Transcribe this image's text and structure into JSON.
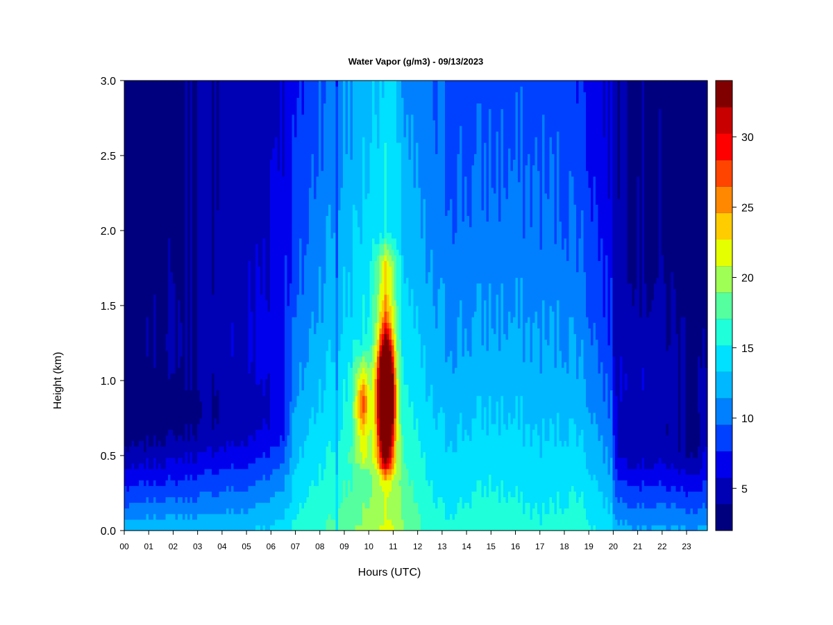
{
  "chart_data": {
    "type": "heatmap",
    "title": "Water Vapor (g/m3) - 09/13/2023",
    "xlabel": "Hours (UTC)",
    "ylabel": "Height (km)",
    "xlim": [
      0,
      23.85
    ],
    "ylim": [
      0,
      3.0
    ],
    "x_ticks": [
      "00",
      "01",
      "02",
      "03",
      "04",
      "05",
      "06",
      "07",
      "08",
      "09",
      "10",
      "11",
      "12",
      "13",
      "14",
      "15",
      "16",
      "17",
      "18",
      "19",
      "20",
      "21",
      "22",
      "23"
    ],
    "y_ticks": [
      "0.0",
      "0.5",
      "1.0",
      "1.5",
      "2.0",
      "2.5",
      "3.0"
    ],
    "colorbar": {
      "range": [
        2,
        34
      ],
      "level_step": 2,
      "ticks": [
        "5",
        "10",
        "15",
        "20",
        "25",
        "30"
      ],
      "colors": [
        "#00007f",
        "#0000b4",
        "#0000ed",
        "#0040ff",
        "#0080ff",
        "#00b8ff",
        "#00e0ff",
        "#1fffd9",
        "#55ff9f",
        "#9fff55",
        "#e6ff00",
        "#ffcc00",
        "#ff8800",
        "#ff4400",
        "#ff0000",
        "#c80000",
        "#800000"
      ]
    },
    "grid": false,
    "profile": {
      "x": [
        0,
        1,
        2,
        3,
        4,
        5,
        6,
        6.5,
        7,
        7.5,
        8,
        8.6,
        8.9,
        9.3,
        9.7,
        10.1,
        10.4,
        10.7,
        11.0,
        11.4,
        12.0,
        12.6,
        13.2,
        14,
        15,
        16,
        17,
        18,
        18.6,
        19,
        19.5,
        19.95,
        20.05,
        21,
        22,
        23,
        23.85
      ],
      "surface_value": [
        13.5,
        13.8,
        14.0,
        14.0,
        14.0,
        14.0,
        14.5,
        15.0,
        16.5,
        17.5,
        18.0,
        18.5,
        19.0,
        19.5,
        20.5,
        21.0,
        22.0,
        22.5,
        22.0,
        20.5,
        18.5,
        17.0,
        16.5,
        17.0,
        17.5,
        17.0,
        16.5,
        17.0,
        17.5,
        16.5,
        15.8,
        15.0,
        13.0,
        12.5,
        12.5,
        12.5,
        12.5
      ],
      "surface_depth_km": [
        0.45,
        0.5,
        0.5,
        0.5,
        0.55,
        0.55,
        0.75,
        0.9,
        1.3,
        1.6,
        1.9,
        2.0,
        2.1,
        2.2,
        2.3,
        2.4,
        2.5,
        2.6,
        2.4,
        2.1,
        2.0,
        1.9,
        1.9,
        1.9,
        1.95,
        2.0,
        2.0,
        1.9,
        1.8,
        1.6,
        1.3,
        1.1,
        0.65,
        0.65,
        0.7,
        0.6,
        0.55
      ],
      "top_value": [
        2.5,
        2.6,
        3.2,
        3.8,
        4.5,
        5.0,
        5.5,
        6.0,
        6.5,
        7.0,
        7.8,
        8.5,
        9.0,
        9.5,
        10.0,
        10.5,
        10.8,
        11.0,
        10.5,
        9.5,
        8.5,
        8.0,
        7.5,
        7.0,
        7.0,
        7.0,
        7.0,
        6.8,
        6.5,
        6.0,
        5.5,
        5.0,
        4.5,
        3.8,
        3.0,
        2.6,
        2.5
      ]
    },
    "features": [
      {
        "type": "core",
        "x": 10.7,
        "y": 0.9,
        "peak": 32,
        "sx": 0.22,
        "sy": 0.25
      },
      {
        "type": "column",
        "x": 10.7,
        "peak": 7,
        "sx": 0.28,
        "y_min": 0.4,
        "y_max": 1.9
      },
      {
        "type": "core",
        "x": 9.75,
        "y": 0.85,
        "peak": 7.5,
        "sx": 0.18,
        "sy": 0.12
      },
      {
        "type": "column",
        "x": 9.75,
        "peak": 4,
        "sx": 0.3,
        "y_min": 0.45,
        "y_max": 1.2
      },
      {
        "type": "mid_dry",
        "x_start": 0,
        "x_end": 6.9,
        "y_center": 0.72,
        "y_half": 0.4,
        "depth": 2.5
      },
      {
        "type": "mid_dry",
        "x_start": 20.0,
        "x_end": 23.85,
        "y_center": 0.55,
        "y_half": 0.35,
        "depth": 2.5
      },
      {
        "type": "streak",
        "x": 8.72,
        "delta": -3
      }
    ]
  }
}
